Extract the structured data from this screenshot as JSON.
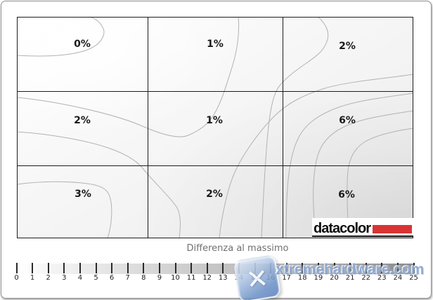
{
  "chart_data": {
    "type": "heatmap",
    "title": "Differenza al massimo",
    "description": "Monitor luminance uniformity contour map: 3x3 grid of measured maximum difference percentages with smooth contour lines; darker shading indicates larger difference (bottom-right region).",
    "grid": {
      "rows": 3,
      "cols": 3
    },
    "row_names": [
      "top",
      "middle",
      "bottom"
    ],
    "col_names": [
      "left",
      "center",
      "right"
    ],
    "values_percent": [
      [
        0,
        1,
        2
      ],
      [
        2,
        1,
        6
      ],
      [
        3,
        2,
        6
      ]
    ],
    "cell_labels": [
      "0%",
      "1%",
      "2%",
      "2%",
      "1%",
      "6%",
      "3%",
      "2%",
      "6%"
    ],
    "scale": {
      "label": "Differenza al massimo",
      "min": 0,
      "max": 25,
      "step": 1
    },
    "legend_position": "bottom",
    "grid_lines": true
  },
  "scale_bar": {
    "title": "Differenza al massimo",
    "ticks": [
      0,
      1,
      2,
      3,
      4,
      5,
      6,
      7,
      8,
      9,
      10,
      11,
      12,
      13,
      14,
      15,
      16,
      17,
      18,
      19,
      20,
      21,
      22,
      23,
      24,
      25
    ],
    "gradient_start_color": "#ffffff",
    "gradient_end_color": "#8c8c8c"
  },
  "branding": {
    "logo_text": "datacolor",
    "logo_accent_color": "#d93434"
  },
  "watermark": {
    "text": "xtremehardware.com",
    "icon": "x-key-icon",
    "icon_glyph": "✕",
    "color": "#7a9acd"
  }
}
